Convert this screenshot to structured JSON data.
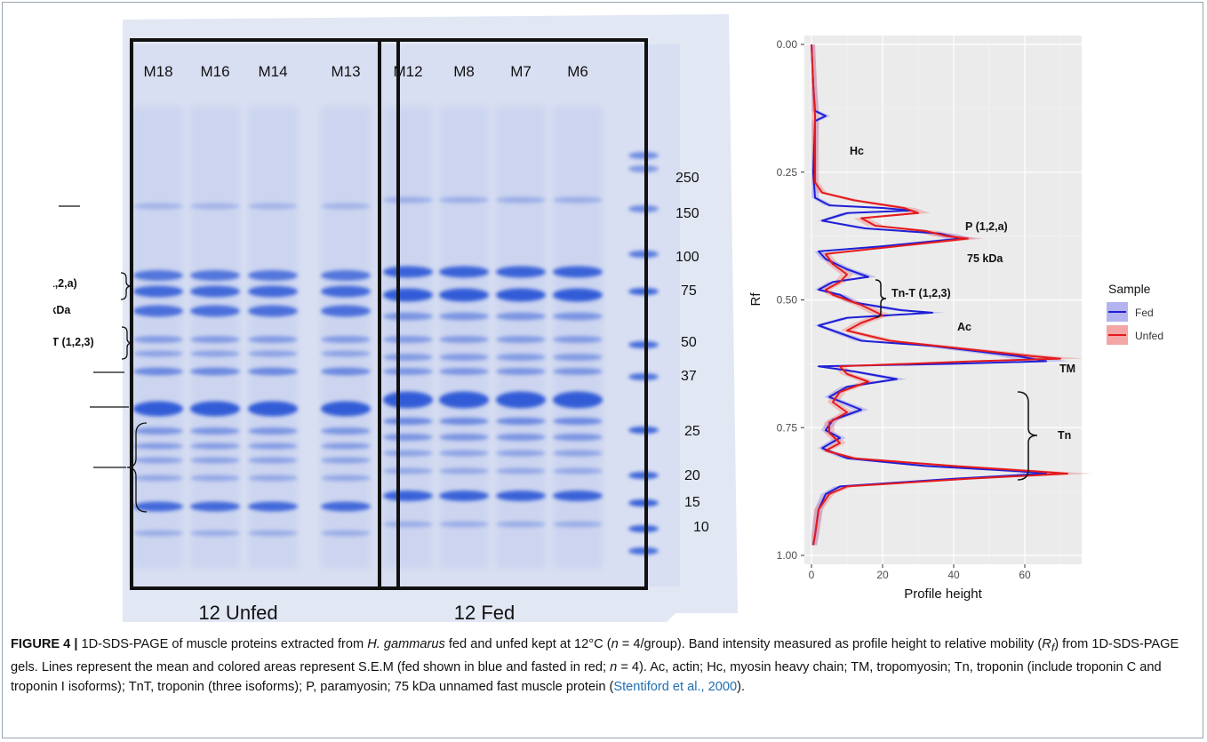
{
  "figure": {
    "label": "FIGURE 4 |",
    "caption_parts": [
      " 1D-SDS-PAGE of muscle proteins extracted from ",
      "H. gammarus",
      " fed and unfed kept at 12°C (",
      "n",
      " = 4/group). Band intensity measured as profile height to relative mobility (",
      "R",
      "f",
      ") from 1D-SDS-PAGE gels. Lines represent the mean and colored areas represent S.E.M (fed shown in blue and fasted in red; ",
      "n",
      " = 4). Ac, actin; Hc, myosin heavy chain; TM, tropomyosin; Tn, troponin (include troponin C and troponin I isoforms); TnT, troponin (three isoforms); P, paramyosin; 75 kDa unnamed fast muscle protein (",
      "Stentiford et al., 2000",
      ")."
    ]
  },
  "gel": {
    "lanes": [
      "M18",
      "M16",
      "M14",
      "M13",
      "M12",
      "M8",
      "M7",
      "M6"
    ],
    "group_labels": [
      "12 Unfed",
      "12 Fed"
    ],
    "ladder_kda": [
      "250",
      "150",
      "100",
      "75",
      "50",
      "37",
      "25",
      "20",
      "15",
      "10"
    ],
    "band_labels": [
      "Hc",
      "P (1,2,a)",
      "75 kDa",
      "Tn-T (1,2,3)",
      "Ac",
      "TM",
      "Tn"
    ],
    "colors": {
      "band": "#2b57d6",
      "background": "#dde2f4",
      "box": "#111111"
    }
  },
  "chart_data": {
    "type": "line",
    "xlabel": "Profile height",
    "ylabel": "Rf",
    "xlim": [
      -2,
      76
    ],
    "ylim": [
      1.0,
      0.0
    ],
    "y_reversed": true,
    "xticks": [
      "0",
      "20",
      "40",
      "60"
    ],
    "yticks": [
      "0.00",
      "0.25",
      "0.50",
      "0.75",
      "1.00"
    ],
    "grid": true,
    "legend": {
      "title": "Sample",
      "placement": "right",
      "entries": [
        "Fed",
        "Unfed"
      ]
    },
    "annotations": [
      "Hc",
      "P (1,2,a)",
      "75 kDa",
      "Tn-T (1,2,3)",
      "Ac",
      "TM",
      "Tn"
    ],
    "series": [
      {
        "name": "Fed",
        "color": "#1f1fd6",
        "points": [
          [
            0,
            0.0
          ],
          [
            0.5,
            0.08
          ],
          [
            1,
            0.13
          ],
          [
            4,
            0.14
          ],
          [
            1,
            0.15
          ],
          [
            0.5,
            0.25
          ],
          [
            1,
            0.3
          ],
          [
            5,
            0.315
          ],
          [
            20,
            0.32
          ],
          [
            28,
            0.325
          ],
          [
            10,
            0.33
          ],
          [
            3,
            0.345
          ],
          [
            15,
            0.36
          ],
          [
            36,
            0.37
          ],
          [
            42,
            0.38
          ],
          [
            20,
            0.395
          ],
          [
            2,
            0.405
          ],
          [
            4,
            0.42
          ],
          [
            10,
            0.44
          ],
          [
            16,
            0.455
          ],
          [
            6,
            0.465
          ],
          [
            2,
            0.48
          ],
          [
            8,
            0.49
          ],
          [
            12,
            0.505
          ],
          [
            25,
            0.52
          ],
          [
            34,
            0.525
          ],
          [
            10,
            0.535
          ],
          [
            2,
            0.55
          ],
          [
            6,
            0.56
          ],
          [
            14,
            0.58
          ],
          [
            34,
            0.59
          ],
          [
            58,
            0.61
          ],
          [
            66,
            0.62
          ],
          [
            40,
            0.625
          ],
          [
            2,
            0.63
          ],
          [
            12,
            0.64
          ],
          [
            24,
            0.655
          ],
          [
            10,
            0.67
          ],
          [
            5,
            0.69
          ],
          [
            14,
            0.715
          ],
          [
            6,
            0.735
          ],
          [
            4,
            0.755
          ],
          [
            8,
            0.77
          ],
          [
            3,
            0.79
          ],
          [
            10,
            0.81
          ],
          [
            32,
            0.825
          ],
          [
            58,
            0.835
          ],
          [
            66,
            0.84
          ],
          [
            40,
            0.85
          ],
          [
            8,
            0.865
          ],
          [
            4,
            0.88
          ],
          [
            2,
            0.91
          ],
          [
            1,
            0.96
          ],
          [
            0.5,
            0.98
          ]
        ]
      },
      {
        "name": "Unfed",
        "color": "#e41a1c",
        "points": [
          [
            0,
            0.0
          ],
          [
            0.5,
            0.08
          ],
          [
            1,
            0.14
          ],
          [
            1,
            0.2
          ],
          [
            1,
            0.27
          ],
          [
            3,
            0.29
          ],
          [
            12,
            0.305
          ],
          [
            26,
            0.32
          ],
          [
            30,
            0.33
          ],
          [
            14,
            0.34
          ],
          [
            18,
            0.355
          ],
          [
            32,
            0.365
          ],
          [
            38,
            0.375
          ],
          [
            44,
            0.38
          ],
          [
            24,
            0.395
          ],
          [
            4,
            0.41
          ],
          [
            6,
            0.43
          ],
          [
            10,
            0.45
          ],
          [
            8,
            0.465
          ],
          [
            4,
            0.48
          ],
          [
            6,
            0.49
          ],
          [
            10,
            0.5
          ],
          [
            14,
            0.51
          ],
          [
            20,
            0.53
          ],
          [
            14,
            0.545
          ],
          [
            10,
            0.56
          ],
          [
            22,
            0.58
          ],
          [
            42,
            0.595
          ],
          [
            62,
            0.61
          ],
          [
            70,
            0.615
          ],
          [
            46,
            0.62
          ],
          [
            8,
            0.63
          ],
          [
            10,
            0.645
          ],
          [
            16,
            0.66
          ],
          [
            8,
            0.68
          ],
          [
            6,
            0.7
          ],
          [
            10,
            0.72
          ],
          [
            5,
            0.74
          ],
          [
            5,
            0.76
          ],
          [
            8,
            0.78
          ],
          [
            4,
            0.795
          ],
          [
            12,
            0.81
          ],
          [
            40,
            0.825
          ],
          [
            62,
            0.835
          ],
          [
            72,
            0.84
          ],
          [
            44,
            0.85
          ],
          [
            10,
            0.865
          ],
          [
            5,
            0.88
          ],
          [
            2,
            0.91
          ],
          [
            1,
            0.96
          ],
          [
            0.5,
            0.98
          ]
        ]
      }
    ]
  }
}
